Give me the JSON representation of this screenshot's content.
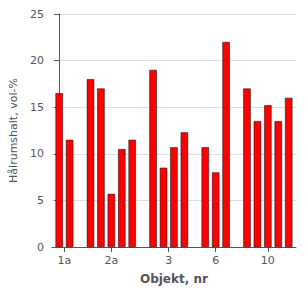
{
  "chart_data": {
    "type": "bar",
    "categories": [
      "1a",
      "2a",
      "3",
      "6",
      "10"
    ],
    "values": [
      [
        16.5,
        11.5
      ],
      [
        18.0,
        17.0,
        5.7,
        10.5,
        11.5
      ],
      [
        19.0,
        8.5,
        10.7,
        12.3
      ],
      [
        10.7,
        8.0,
        22.0
      ],
      [
        17.0,
        13.5,
        15.2,
        13.5,
        16.0
      ]
    ],
    "color": "#FF0000",
    "xlabel": "Objekt, nr",
    "ylabel": "Hålrumshalt, vol-%",
    "ylim": [
      0,
      25
    ],
    "yticks": [
      0,
      5,
      10,
      15,
      20,
      25
    ],
    "grid": true
  }
}
